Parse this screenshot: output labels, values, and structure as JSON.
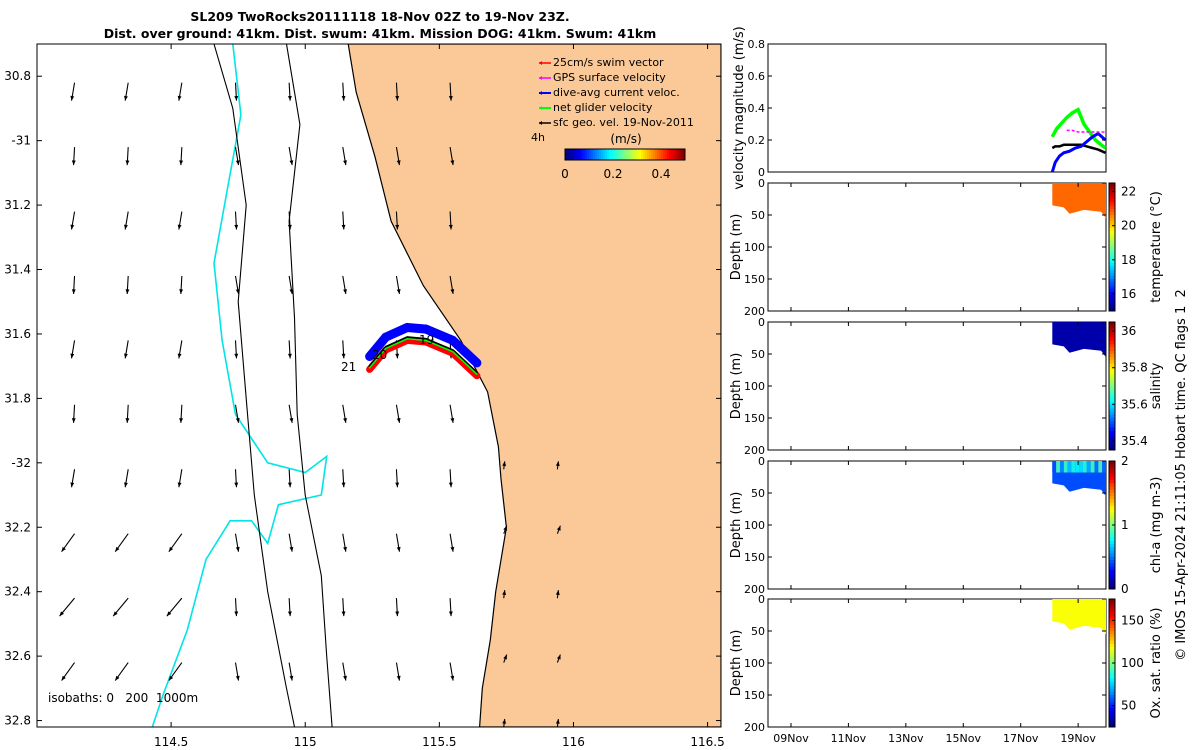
{
  "title_line1": "SL209 TwoRocks20111118 18-Nov 02Z to 19-Nov 23Z.",
  "title_line2": "Dist. over ground: 41km. Dist. swum: 41km. Mission DOG: 41km. Swum: 41km",
  "colors": {
    "land": "#fbc998",
    "coast": "#000000",
    "isobath_shallow": "#00e5e5",
    "swim_vector": "#ff0000",
    "gps_velocity": "#ff00ff",
    "dive_avg_current": "#0000ff",
    "net_glider": "#00ff00",
    "geostrophic": "#000000"
  },
  "chart_data": [
    {
      "type": "map",
      "xlim": [
        114.0,
        116.55
      ],
      "ylim": [
        -32.82,
        -30.7
      ],
      "x_ticks": [
        114.5,
        115,
        115.5,
        116,
        116.5
      ],
      "x_tick_labels": [
        "114.5",
        "115",
        "115.5",
        "116",
        "116.5"
      ],
      "y_ticks": [
        -30.8,
        -31,
        -31.2,
        -31.4,
        -31.6,
        -31.8,
        -32,
        -32.2,
        -32.4,
        -32.6,
        -32.8
      ],
      "y_tick_labels": [
        "30.8",
        "-31",
        "31.2",
        "31.4",
        "31.6",
        "31.8",
        "-32",
        "32.2",
        "32.4",
        "32.6",
        "32.8"
      ],
      "legend": {
        "position": "top-right",
        "entries": [
          "25cm/s swim vector",
          "GPS surface velocity",
          "dive-avg current veloc.",
          "net glider velocity",
          "sfc geo. vel. 19-Nov-2011"
        ],
        "side_label": "4h"
      },
      "colorbar": {
        "label": "(m/s)",
        "range": [
          0,
          0.5
        ],
        "ticks": [
          0,
          0.2,
          0.4
        ],
        "tick_labels": [
          "0",
          "0.2",
          "0.4"
        ]
      },
      "isobath_label": "isobaths: 0   200  1000m",
      "track_labels": [
        {
          "text": "19",
          "lon": 115.49,
          "lat": -31.61
        },
        {
          "text": "20",
          "lon": 115.3,
          "lat": -31.665
        },
        {
          "text": "21",
          "lon": 115.22,
          "lat": -31.71
        }
      ],
      "track_path": [
        [
          115.64,
          -31.72
        ],
        [
          115.55,
          -31.65
        ],
        [
          115.45,
          -31.615
        ],
        [
          115.38,
          -31.61
        ],
        [
          115.3,
          -31.64
        ],
        [
          115.24,
          -31.7
        ]
      ],
      "coastline": [
        [
          116.55,
          -30.7
        ],
        [
          115.16,
          -30.7
        ],
        [
          115.19,
          -30.85
        ],
        [
          115.26,
          -31.05
        ],
        [
          115.32,
          -31.25
        ],
        [
          115.44,
          -31.45
        ],
        [
          115.58,
          -31.62
        ],
        [
          115.68,
          -31.78
        ],
        [
          115.72,
          -31.95
        ],
        [
          115.73,
          -32.05
        ],
        [
          115.75,
          -32.2
        ],
        [
          115.71,
          -32.4
        ],
        [
          115.69,
          -32.55
        ],
        [
          115.66,
          -32.7
        ],
        [
          115.65,
          -32.82
        ],
        [
          116.55,
          -32.82
        ]
      ],
      "isobath_shallow": [
        [
          114.73,
          -30.7
        ],
        [
          114.76,
          -30.92
        ],
        [
          114.71,
          -31.15
        ],
        [
          114.66,
          -31.38
        ],
        [
          114.69,
          -31.62
        ],
        [
          114.74,
          -31.85
        ],
        [
          114.86,
          -32.0
        ],
        [
          115.0,
          -32.03
        ],
        [
          115.08,
          -31.98
        ],
        [
          115.06,
          -32.1
        ],
        [
          114.9,
          -32.13
        ],
        [
          114.86,
          -32.25
        ],
        [
          114.8,
          -32.18
        ],
        [
          114.72,
          -32.18
        ],
        [
          114.63,
          -32.3
        ],
        [
          114.56,
          -32.52
        ],
        [
          114.47,
          -32.72
        ],
        [
          114.43,
          -32.82
        ]
      ],
      "isobath_200": [
        [
          114.93,
          -30.7
        ],
        [
          114.98,
          -30.95
        ],
        [
          114.94,
          -31.25
        ],
        [
          114.96,
          -31.55
        ],
        [
          114.97,
          -31.85
        ],
        [
          115.0,
          -32.1
        ],
        [
          115.06,
          -32.35
        ],
        [
          115.08,
          -32.6
        ],
        [
          115.1,
          -32.82
        ]
      ],
      "isobath_1000": [
        [
          114.66,
          -30.7
        ],
        [
          114.73,
          -30.9
        ],
        [
          114.78,
          -31.2
        ],
        [
          114.75,
          -31.5
        ],
        [
          114.78,
          -31.8
        ],
        [
          114.81,
          -32.1
        ],
        [
          114.86,
          -32.4
        ],
        [
          114.93,
          -32.7
        ],
        [
          114.96,
          -32.82
        ]
      ],
      "geo_vectors_grid": {
        "lons": [
          114.14,
          114.34,
          114.54,
          114.74,
          114.94,
          115.14,
          115.34,
          115.54,
          115.74,
          115.94
        ],
        "lats": [
          -30.82,
          -31.02,
          -31.22,
          -31.42,
          -31.62,
          -31.82,
          -32.02,
          -32.22,
          -32.42,
          -32.62,
          -32.82
        ]
      }
    },
    {
      "type": "line",
      "ylabel": "velocity magnitude (m/s)",
      "ylim": [
        0,
        0.8
      ],
      "y_ticks": [
        0,
        0.2,
        0.4,
        0.6,
        0.8
      ],
      "y_tick_labels": [
        "0",
        "0.2",
        "0.4",
        "0.6",
        "0.8"
      ],
      "x_ticks": [
        "09Nov",
        "11Nov",
        "13Nov",
        "15Nov",
        "17Nov",
        "19Nov"
      ],
      "xlim_days": [
        8.2,
        19.97
      ],
      "series": [
        {
          "x": [
            18.1,
            18.2,
            18.35,
            18.5,
            18.7,
            18.9,
            19.1,
            19.3,
            19.5,
            19.7,
            19.95
          ],
          "values": [
            0.15,
            0.16,
            0.16,
            0.17,
            0.17,
            0.17,
            0.17,
            0.16,
            0.15,
            0.14,
            0.12
          ]
        },
        {
          "x": [
            18.1,
            18.25,
            18.4,
            18.6,
            18.8,
            19.0,
            19.2,
            19.4,
            19.6,
            19.8,
            19.95
          ],
          "values": [
            0.22,
            0.27,
            0.3,
            0.34,
            0.37,
            0.39,
            0.3,
            0.25,
            0.2,
            0.17,
            0.15
          ]
        },
        {
          "x": [
            18.1,
            18.2,
            18.35,
            18.5,
            18.7,
            18.9,
            19.1,
            19.3,
            19.5,
            19.7,
            19.95
          ],
          "values": [
            0.0,
            0.06,
            0.1,
            0.12,
            0.13,
            0.15,
            0.16,
            0.19,
            0.22,
            0.24,
            0.2
          ]
        },
        {
          "x": [
            18.6,
            18.8,
            19.0,
            19.2,
            19.4,
            19.6,
            19.8,
            19.95
          ],
          "values": [
            0.26,
            0.26,
            0.25,
            0.25,
            0.25,
            0.25,
            0.25,
            0.25
          ]
        }
      ]
    },
    {
      "type": "heatmap",
      "ylabel": "Depth (m)",
      "y_ticks": [
        0,
        50,
        100,
        150,
        200
      ],
      "y_tick_labels": [
        "0",
        "50",
        "100",
        "150",
        "200"
      ],
      "colorbar_label": "temperature (°C)",
      "colorbar_range": [
        15,
        22.5
      ],
      "colorbar_ticks": [
        16,
        18,
        20,
        22
      ],
      "colorbar_tick_labels": [
        "16",
        "18",
        "20",
        "22"
      ],
      "value": 20.8
    },
    {
      "type": "heatmap",
      "ylabel": "Depth (m)",
      "y_ticks": [
        0,
        50,
        100,
        150,
        200
      ],
      "y_tick_labels": [
        "0",
        "50",
        "100",
        "150",
        "200"
      ],
      "colorbar_label": "salinity",
      "colorbar_range": [
        35.35,
        36.05
      ],
      "colorbar_ticks": [
        35.4,
        35.6,
        35.8,
        36
      ],
      "colorbar_tick_labels": [
        "35.4",
        "35.6",
        "35.8",
        "36"
      ],
      "value": 35.38
    },
    {
      "type": "heatmap",
      "ylabel": "Depth (m)",
      "y_ticks": [
        0,
        50,
        100,
        150,
        200
      ],
      "y_tick_labels": [
        "0",
        "50",
        "100",
        "150",
        "200"
      ],
      "colorbar_label": "chl-a (mg m-3)",
      "colorbar_range": [
        0,
        2
      ],
      "colorbar_ticks": [
        0,
        1,
        2
      ],
      "colorbar_tick_labels": [
        "0",
        "1",
        "2"
      ],
      "value": 0.4
    },
    {
      "type": "heatmap",
      "ylabel": "Depth (m)",
      "y_ticks": [
        0,
        50,
        100,
        150,
        200
      ],
      "y_tick_labels": [
        "0",
        "50",
        "100",
        "150",
        "200"
      ],
      "x_tick_labels": [
        "09Nov",
        "11Nov",
        "13Nov",
        "15Nov",
        "17Nov",
        "19Nov"
      ],
      "colorbar_label": "Ox. sat. ratio (%)",
      "colorbar_range": [
        25,
        175
      ],
      "colorbar_ticks": [
        50,
        100,
        150
      ],
      "colorbar_tick_labels": [
        "50",
        "100",
        "150"
      ],
      "value": 118
    }
  ],
  "footer_text": "© IMOS 15-Apr-2024 21:11:05 Hobart time. QC flags 1  2"
}
